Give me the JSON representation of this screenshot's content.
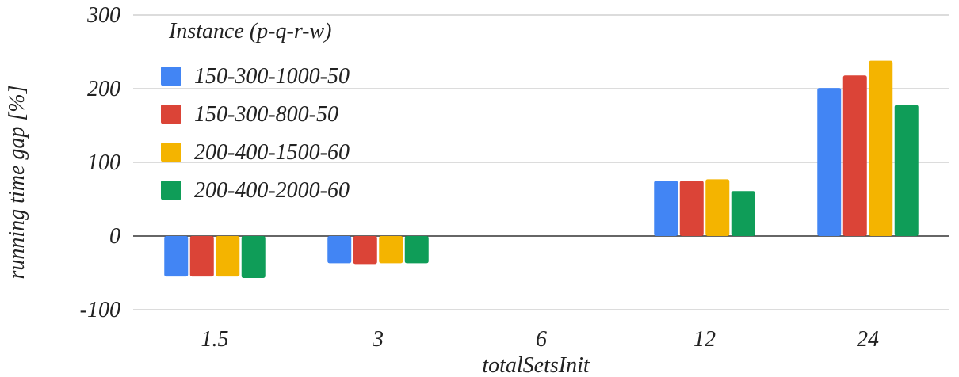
{
  "chart_data": {
    "type": "bar",
    "categories": [
      "1.5",
      "3",
      "6",
      "12",
      "24"
    ],
    "series": [
      {
        "name": "150-300-1000-50",
        "color": "#4285F4",
        "values": [
          -55,
          -37,
          0,
          75,
          201
        ]
      },
      {
        "name": "150-300-800-50",
        "color": "#DB4437",
        "values": [
          -55,
          -38,
          0,
          75,
          218
        ]
      },
      {
        "name": "200-400-1500-60",
        "color": "#F4B400",
        "values": [
          -55,
          -37,
          0,
          77,
          238
        ]
      },
      {
        "name": "200-400-2000-60",
        "color": "#0F9D58",
        "values": [
          -57,
          -37,
          0,
          61,
          178
        ]
      }
    ],
    "title": "",
    "xlabel": "totalSetsInit",
    "ylabel": "running time gap [%]",
    "ylim": [
      -100,
      300
    ],
    "yticks": [
      "300",
      "200",
      "100",
      "0",
      "-100"
    ],
    "ytick_values": [
      300,
      200,
      100,
      0,
      -100
    ],
    "legend_title": "Instance (p-q-r-w)",
    "legend_position": "top-left",
    "grid": true
  }
}
